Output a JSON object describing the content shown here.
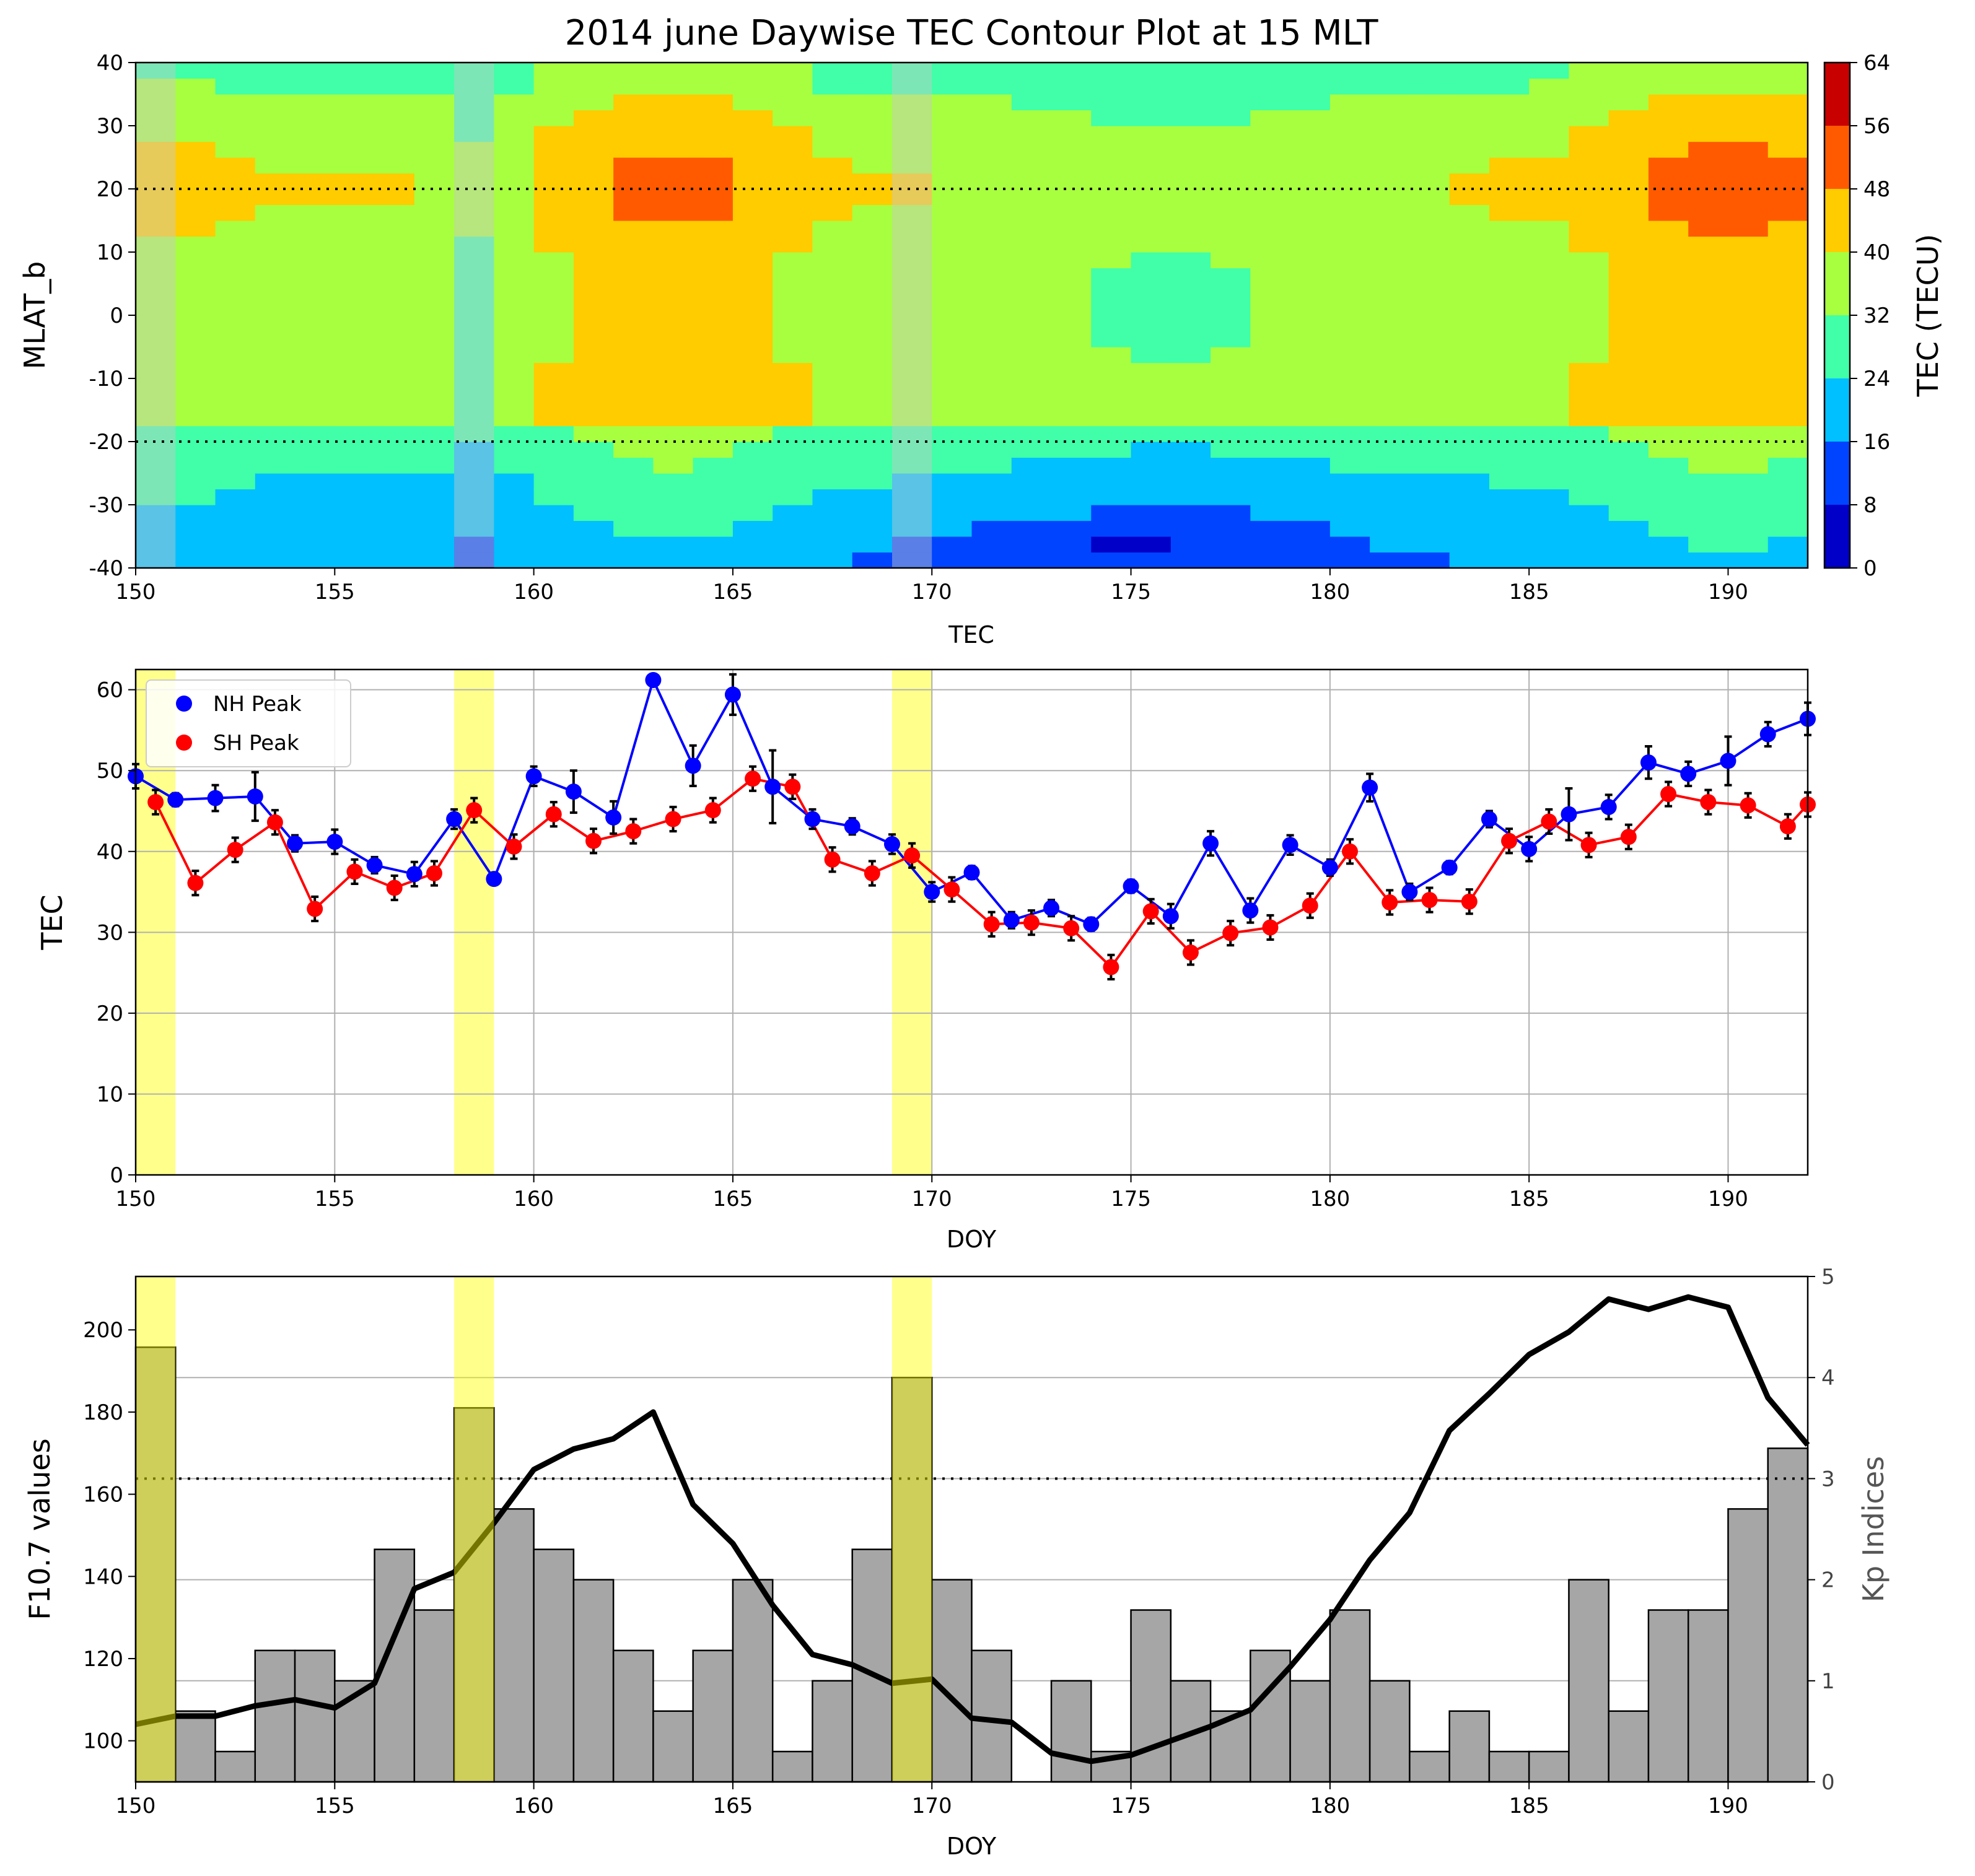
{
  "chart_data": [
    {
      "type": "heatmap",
      "subtype": "filled-contour",
      "title": "2014 june Daywise TEC Contour Plot at 15 MLT",
      "xlabel": "TEC",
      "ylabel": "MLAT_b",
      "xlim": [
        150,
        192
      ],
      "ylim": [
        -40,
        40
      ],
      "x_ticks": [
        150,
        155,
        160,
        165,
        170,
        175,
        180,
        185,
        190
      ],
      "y_ticks": [
        40,
        30,
        20,
        10,
        0,
        -10,
        -20,
        -30,
        -40
      ],
      "reference_lines_y": [
        20,
        -20
      ],
      "highlight_doy_ranges": [
        [
          150,
          151
        ],
        [
          158,
          159
        ],
        [
          169,
          170
        ]
      ],
      "colorbar": {
        "label": "TEC (TECU)",
        "levels": [
          0,
          8,
          16,
          24,
          32,
          40,
          48,
          56,
          64
        ],
        "colors": [
          "#0000c8",
          "#0044ff",
          "#00c0ff",
          "#40ffa8",
          "#a8ff40",
          "#ffcc00",
          "#ff5a00",
          "#c80000"
        ]
      },
      "grid_doy": [
        150,
        151,
        152,
        153,
        154,
        155,
        156,
        157,
        158,
        159,
        160,
        161,
        162,
        163,
        164,
        165,
        166,
        167,
        168,
        169,
        170,
        171,
        172,
        173,
        174,
        175,
        176,
        177,
        178,
        179,
        180,
        181,
        182,
        183,
        184,
        185,
        186,
        187,
        188,
        189,
        190,
        191,
        192
      ],
      "grid_mlat": [
        -40,
        -35,
        -30,
        -25,
        -20,
        -15,
        -10,
        -5,
        0,
        5,
        10,
        15,
        20,
        25,
        30,
        35,
        40
      ]
    },
    {
      "type": "line",
      "xlabel": "DOY",
      "ylabel": "TEC",
      "xlim": [
        150,
        192
      ],
      "ylim": [
        0,
        62.5
      ],
      "x_ticks": [
        150,
        155,
        160,
        165,
        170,
        175,
        180,
        185,
        190
      ],
      "y_ticks": [
        0,
        10,
        20,
        30,
        40,
        50,
        60
      ],
      "grid": true,
      "legend_position": "top-left",
      "highlight_doy_ranges": [
        [
          150,
          151
        ],
        [
          158,
          159
        ],
        [
          169,
          170
        ]
      ],
      "series": [
        {
          "name": "NH Peak",
          "color": "#0000ff",
          "x": [
            150,
            151,
            152,
            153,
            154,
            155,
            156,
            157,
            158,
            159,
            160,
            161,
            162,
            163,
            164,
            165,
            166,
            167,
            168,
            169,
            170,
            171,
            172,
            173,
            174,
            175,
            176,
            177,
            178,
            179,
            180,
            181,
            182,
            183,
            184,
            185,
            186,
            187,
            188,
            189,
            190,
            191,
            192
          ],
          "y": [
            49.3,
            46.4,
            46.6,
            46.8,
            41.0,
            41.2,
            38.3,
            37.2,
            44.0,
            36.6,
            49.3,
            47.4,
            44.2,
            61.2,
            50.6,
            59.4,
            48.0,
            44.0,
            43.1,
            40.9,
            35.0,
            37.4,
            31.5,
            33.0,
            31.0,
            35.7,
            32.0,
            41.0,
            32.7,
            40.8,
            38.0,
            47.9,
            35.0,
            38.0,
            44.0,
            40.3,
            44.6,
            45.5,
            51.0,
            49.6,
            51.2,
            54.5,
            56.4
          ],
          "err": [
            1.5,
            0.8,
            1.6,
            3.0,
            1.0,
            1.5,
            1.0,
            1.5,
            1.2,
            0.5,
            1.2,
            2.6,
            2.0,
            0.5,
            2.5,
            2.5,
            4.5,
            1.2,
            1.0,
            1.2,
            1.2,
            0.8,
            1.0,
            1.0,
            0.8,
            0.8,
            1.5,
            1.5,
            1.5,
            1.2,
            1.0,
            1.7,
            1.0,
            0.8,
            1.0,
            1.5,
            3.2,
            1.5,
            2.0,
            1.5,
            3.0,
            1.5,
            2.0
          ]
        },
        {
          "name": "SH Peak",
          "color": "#ff0000",
          "x": [
            150.5,
            151.5,
            152.5,
            153.5,
            154.5,
            155.5,
            156.5,
            157.5,
            158.5,
            159.5,
            160.5,
            161.5,
            162.5,
            163.5,
            164.5,
            165.5,
            166.5,
            167.5,
            168.5,
            169.5,
            170.5,
            171.5,
            172.5,
            173.5,
            174.5,
            175.5,
            176.5,
            177.5,
            178.5,
            179.5,
            180.5,
            181.5,
            182.5,
            183.5,
            184.5,
            185.5,
            186.5,
            187.5,
            188.5,
            189.5,
            190.5,
            191.5,
            192.0
          ],
          "y": [
            46.1,
            36.1,
            40.2,
            43.6,
            32.9,
            37.5,
            35.5,
            37.3,
            45.1,
            40.6,
            44.6,
            41.3,
            42.5,
            44.0,
            45.1,
            49.0,
            48.0,
            39.0,
            37.3,
            39.5,
            35.3,
            31.0,
            31.2,
            30.5,
            25.7,
            32.6,
            27.5,
            29.9,
            30.6,
            33.3,
            40.0,
            33.7,
            34.0,
            33.8,
            41.3,
            43.7,
            40.8,
            41.8,
            47.1,
            46.1,
            45.7,
            43.1,
            45.8
          ]
        }
      ]
    },
    {
      "type": "line",
      "secondary_type": "bar",
      "xlabel": "DOY",
      "ylabel": "F10.7 values",
      "ylabel_right": "Kp Indices",
      "xlim": [
        150,
        192
      ],
      "ylim": [
        90,
        213
      ],
      "ylim_right": [
        0,
        5
      ],
      "x_ticks": [
        150,
        155,
        160,
        165,
        170,
        175,
        180,
        185,
        190
      ],
      "y_ticks": [
        100,
        120,
        140,
        160,
        180,
        200
      ],
      "y_ticks_right": [
        0,
        1,
        2,
        3,
        4,
        5
      ],
      "grid": true,
      "reference_line_kp": 3,
      "highlight_doy_ranges": [
        [
          150,
          151
        ],
        [
          158,
          159
        ],
        [
          169,
          170
        ]
      ],
      "f107": {
        "x": [
          150,
          151,
          152,
          153,
          154,
          155,
          156,
          157,
          158,
          159,
          160,
          161,
          162,
          163,
          164,
          165,
          166,
          167,
          168,
          169,
          170,
          171,
          172,
          173,
          174,
          175,
          176,
          177,
          178,
          179,
          180,
          181,
          182,
          183,
          184,
          185,
          186,
          187,
          188,
          189,
          190,
          191,
          192
        ],
        "y": [
          104,
          106,
          106,
          108.5,
          110,
          108,
          114,
          137,
          141,
          153,
          166,
          171,
          173.5,
          180,
          157.5,
          148,
          133,
          121,
          118.5,
          114,
          115,
          105.5,
          104.5,
          97,
          95,
          96.5,
          100,
          103.5,
          107.5,
          118,
          129.5,
          144,
          155.5,
          175.5,
          184.5,
          194,
          199.5,
          207.5,
          205,
          208,
          205.5,
          183.5,
          172
        ]
      },
      "kp": {
        "x": [
          150,
          151,
          152,
          153,
          154,
          155,
          156,
          157,
          158,
          159,
          160,
          161,
          162,
          163,
          164,
          165,
          166,
          167,
          168,
          169,
          170,
          171,
          172,
          173,
          174,
          175,
          176,
          177,
          178,
          179,
          180,
          181,
          182,
          183,
          184,
          185,
          186,
          187,
          188,
          189,
          190,
          191
        ],
        "values": [
          4.3,
          0.7,
          0.3,
          1.3,
          1.3,
          1.0,
          2.3,
          1.7,
          3.7,
          2.7,
          2.3,
          2.0,
          1.3,
          0.7,
          1.3,
          2.0,
          0.3,
          1.0,
          2.3,
          4.0,
          2.0,
          1.3,
          0.0,
          1.0,
          0.3,
          1.7,
          1.0,
          0.7,
          1.3,
          1.0,
          1.7,
          1.0,
          0.3,
          0.7,
          0.3,
          0.3,
          2.0,
          0.7,
          1.7,
          1.7,
          2.7,
          3.3
        ]
      }
    }
  ],
  "legend": {
    "nh": "NH Peak",
    "sh": "SH Peak"
  }
}
